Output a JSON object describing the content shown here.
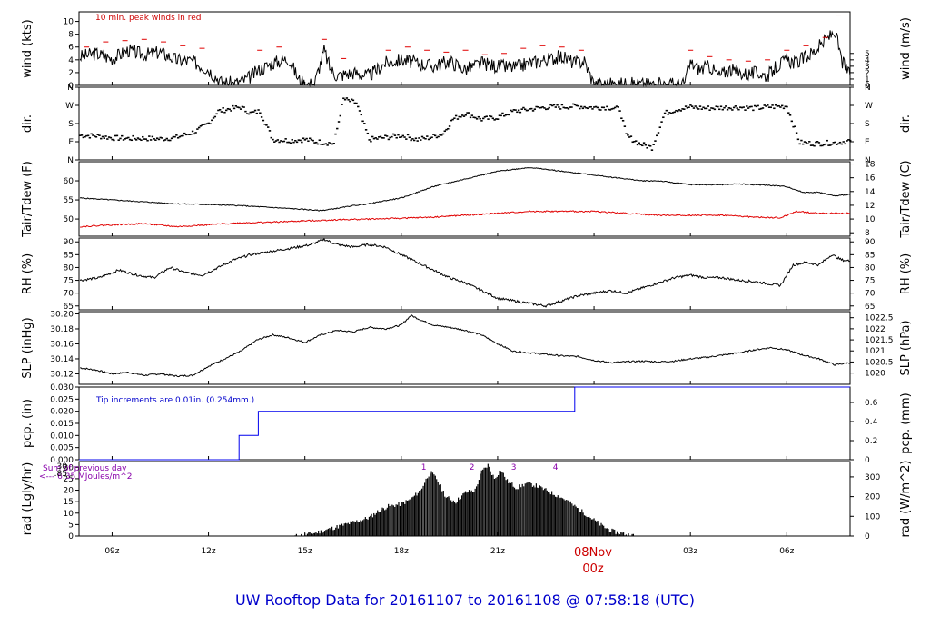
{
  "title": "UW Rooftop Data for 20161107  to  20161108 @ 07:58:18  (UTC)",
  "colors": {
    "black": "#000000",
    "red": "#e00000",
    "blue": "#0000ee",
    "purple": "#8800aa",
    "frame": "#000000"
  },
  "x_axis": {
    "ticks": [
      "09z",
      "12z",
      "15z",
      "18z",
      "21z",
      "08Nov",
      "03z",
      "06z"
    ],
    "tick_hours": [
      9,
      12,
      15,
      18,
      21,
      24,
      27,
      30
    ],
    "date_label": "08Nov",
    "date_sub": "00z",
    "range_hours": [
      7.97,
      31.97
    ]
  },
  "chart_data": [
    {
      "id": "wind",
      "type": "line",
      "ylabel_left": "wind (kts)",
      "ylabel_right": "wind (m/s)",
      "ylim": [
        0,
        11.5
      ],
      "yticks_left": [
        "0",
        "2",
        "4",
        "6",
        "8",
        "10"
      ],
      "yticks_left_values": [
        0,
        2,
        4,
        6,
        8,
        10
      ],
      "yticks_right": [
        "0",
        "1",
        "2",
        "3",
        "4",
        "5"
      ],
      "yticks_right_values": [
        0,
        1,
        2,
        3,
        4,
        5
      ],
      "annotation": "10 min. peak winds in red",
      "series": [
        {
          "color": "black",
          "x": [
            8.0,
            8.5,
            9.0,
            9.5,
            10.0,
            10.5,
            11.0,
            11.5,
            12.0,
            12.4,
            12.8,
            13.2,
            13.6,
            14.0,
            14.5,
            14.8,
            15.0,
            15.3,
            15.6,
            15.8,
            16.0,
            16.5,
            17.0,
            17.5,
            18.0,
            18.5,
            19.0,
            19.5,
            20.0,
            20.5,
            21.0,
            21.5,
            22.0,
            22.5,
            23.0,
            23.4,
            23.7,
            24.0,
            25.0,
            26.0,
            26.8,
            27.0,
            27.3,
            27.6,
            27.9,
            28.2,
            28.5,
            28.8,
            29.1,
            29.4,
            29.7,
            30.0,
            30.3,
            30.6,
            30.9,
            31.2,
            31.5,
            31.7,
            31.97
          ],
          "y": [
            4.5,
            5.0,
            4.2,
            5.5,
            4.8,
            5.2,
            4.0,
            3.8,
            2.5,
            0.5,
            0.3,
            1.0,
            2.5,
            3.5,
            4.2,
            1.0,
            0.2,
            0.3,
            5.5,
            2.5,
            1.5,
            2.0,
            1.5,
            3.5,
            4.0,
            3.5,
            3.0,
            3.8,
            2.5,
            3.5,
            3.0,
            2.8,
            3.5,
            4.0,
            4.5,
            3.5,
            3.8,
            0.2,
            0.2,
            0.2,
            0.2,
            3.5,
            2.5,
            3.0,
            1.5,
            2.5,
            2.0,
            1.8,
            2.0,
            1.5,
            3.0,
            4.0,
            3.5,
            4.5,
            5.5,
            7.0,
            8.5,
            4.0,
            1.5
          ]
        },
        {
          "color": "red",
          "x": [
            8.2,
            8.8,
            9.4,
            10.0,
            10.6,
            11.2,
            11.8,
            13.6,
            14.2,
            15.6,
            16.2,
            17.6,
            18.2,
            18.8,
            19.4,
            20.0,
            20.6,
            21.2,
            21.8,
            22.4,
            23.0,
            23.6,
            27.0,
            27.6,
            28.2,
            28.8,
            29.4,
            30.0,
            30.6,
            31.2,
            31.6
          ],
          "y": [
            6.0,
            6.8,
            7.0,
            7.2,
            6.8,
            6.2,
            5.8,
            5.5,
            6.0,
            7.2,
            4.2,
            5.5,
            6.0,
            5.5,
            5.2,
            5.5,
            4.8,
            5.0,
            5.8,
            6.2,
            6.0,
            5.5,
            5.5,
            4.5,
            4.0,
            3.8,
            4.0,
            5.5,
            6.2,
            7.5,
            11.0
          ]
        }
      ]
    },
    {
      "id": "dir",
      "type": "scatter",
      "ylabel_left": "dir.",
      "ylabel_right": "dir.",
      "ylim": [
        0,
        360
      ],
      "yticks_left": [
        "N",
        "E",
        "S",
        "W",
        "N"
      ],
      "yticks_left_values": [
        0,
        90,
        180,
        270,
        360
      ],
      "yticks_right": [
        "N",
        "E",
        "S",
        "W",
        "N"
      ],
      "yticks_right_values": [
        0,
        90,
        180,
        270,
        360
      ],
      "series": [
        {
          "color": "black",
          "x": [
            8.0,
            8.5,
            9.0,
            9.5,
            10.0,
            10.5,
            11.0,
            11.3,
            11.6,
            12.0,
            12.3,
            12.6,
            13.0,
            13.3,
            13.6,
            14.0,
            14.5,
            15.0,
            15.3,
            15.6,
            15.9,
            16.2,
            16.6,
            17.0,
            17.5,
            18.0,
            18.5,
            18.9,
            19.3,
            19.6,
            20.0,
            20.5,
            21.0,
            21.5,
            22.0,
            22.5,
            23.0,
            23.5,
            24.0,
            24.4,
            24.8,
            25.0,
            25.4,
            25.8,
            26.2,
            26.6,
            27.0,
            27.5,
            28.0,
            28.5,
            29.0,
            29.5,
            30.0,
            30.4,
            30.8,
            31.2,
            31.6,
            31.97
          ],
          "y": [
            120,
            118,
            108,
            105,
            106,
            103,
            110,
            125,
            140,
            180,
            240,
            250,
            260,
            230,
            240,
            100,
            95,
            100,
            90,
            85,
            80,
            300,
            280,
            100,
            110,
            120,
            100,
            110,
            130,
            200,
            230,
            200,
            210,
            240,
            250,
            260,
            262,
            265,
            258,
            260,
            250,
            120,
            80,
            60,
            230,
            250,
            260,
            255,
            258,
            260,
            255,
            262,
            265,
            85,
            80,
            82,
            85,
            95
          ]
        }
      ]
    },
    {
      "id": "temp",
      "type": "line",
      "ylabel_left": "Tair/Tdew (F)",
      "ylabel_right": "Tair/Tdew (C)",
      "ylim": [
        45.5,
        65
      ],
      "yticks_left": [
        "50",
        "55",
        "60"
      ],
      "yticks_left_values": [
        50,
        55,
        60
      ],
      "yticks_right": [
        "8",
        "10",
        "12",
        "14",
        "16",
        "18"
      ],
      "yticks_right_values": [
        46.4,
        50,
        53.6,
        57.2,
        60.8,
        64.4
      ],
      "series": [
        {
          "color": "black",
          "x": [
            8.0,
            9.0,
            10.0,
            11.0,
            12.0,
            13.0,
            14.0,
            15.0,
            15.5,
            16.0,
            16.5,
            17.0,
            17.5,
            18.0,
            18.5,
            19.0,
            19.5,
            20.0,
            20.5,
            21.0,
            21.5,
            22.0,
            22.5,
            23.0,
            23.5,
            24.0,
            24.5,
            25.0,
            25.5,
            26.0,
            26.5,
            27.0,
            27.5,
            28.0,
            28.5,
            29.0,
            29.5,
            30.0,
            30.5,
            31.0,
            31.5,
            31.97
          ],
          "y": [
            55.5,
            55.0,
            54.5,
            54.0,
            53.8,
            53.5,
            53.0,
            52.5,
            52.2,
            52.8,
            53.5,
            54.0,
            54.8,
            55.5,
            57.0,
            58.5,
            59.5,
            60.5,
            61.5,
            62.5,
            63.0,
            63.5,
            63.0,
            62.5,
            62.0,
            61.5,
            61.0,
            60.5,
            60.0,
            60.0,
            59.5,
            59.0,
            59.0,
            59.0,
            59.2,
            59.0,
            58.8,
            58.5,
            57.0,
            57.0,
            56.0,
            56.5
          ]
        },
        {
          "color": "red",
          "x": [
            8.0,
            9.0,
            10.0,
            11.0,
            12.0,
            13.0,
            14.0,
            15.0,
            16.0,
            17.0,
            18.0,
            19.0,
            20.0,
            21.0,
            22.0,
            23.0,
            24.0,
            25.0,
            26.0,
            27.0,
            28.0,
            29.0,
            29.8,
            30.3,
            31.0,
            31.97
          ],
          "y": [
            48.0,
            48.5,
            48.8,
            48.0,
            48.5,
            49.0,
            49.2,
            49.5,
            49.8,
            50.0,
            50.2,
            50.5,
            51.0,
            51.5,
            52.0,
            52.0,
            52.0,
            51.5,
            51.0,
            51.0,
            51.0,
            50.5,
            50.3,
            52.0,
            51.5,
            51.5
          ]
        }
      ]
    },
    {
      "id": "rh",
      "type": "line",
      "ylabel_left": "RH (%)",
      "ylabel_right": "RH (%)",
      "ylim": [
        63.5,
        91.5
      ],
      "yticks_left": [
        "65",
        "70",
        "75",
        "80",
        "85",
        "90"
      ],
      "yticks_left_values": [
        65,
        70,
        75,
        80,
        85,
        90
      ],
      "yticks_right": [
        "65",
        "70",
        "75",
        "80",
        "85",
        "90"
      ],
      "yticks_right_values": [
        65,
        70,
        75,
        80,
        85,
        90
      ],
      "series": [
        {
          "color": "black",
          "x": [
            8.0,
            8.6,
            9.2,
            9.8,
            10.3,
            10.8,
            11.3,
            11.8,
            12.3,
            12.8,
            13.3,
            13.8,
            14.3,
            14.8,
            15.2,
            15.6,
            16.0,
            16.5,
            17.0,
            17.5,
            18.0,
            18.5,
            19.0,
            19.5,
            20.0,
            20.5,
            21.0,
            21.5,
            22.0,
            22.5,
            23.0,
            23.5,
            24.0,
            24.5,
            25.0,
            25.5,
            26.0,
            26.5,
            27.0,
            27.5,
            28.0,
            28.5,
            29.0,
            29.5,
            29.8,
            30.2,
            30.6,
            31.0,
            31.4,
            31.7,
            31.97
          ],
          "y": [
            75.0,
            76.0,
            79.0,
            77.0,
            76.0,
            80.0,
            78.0,
            77.0,
            80.0,
            83.0,
            85.0,
            86.0,
            87.0,
            88.0,
            89.0,
            91.0,
            89.0,
            88.0,
            89.0,
            88.0,
            85.0,
            82.0,
            79.0,
            76.0,
            74.0,
            71.0,
            68.0,
            67.0,
            66.0,
            65.0,
            67.0,
            69.0,
            70.0,
            71.0,
            70.0,
            72.0,
            74.0,
            76.0,
            77.0,
            76.0,
            76.0,
            75.0,
            74.5,
            73.5,
            73.0,
            81.0,
            82.0,
            81.0,
            85.0,
            83.0,
            82.5
          ]
        }
      ]
    },
    {
      "id": "slp",
      "type": "line",
      "ylabel_left": "SLP (inHg)",
      "ylabel_right": "SLP (hPa)",
      "ylim": [
        30.106,
        30.203
      ],
      "yticks_left": [
        "30.12",
        "30.14",
        "30.16",
        "30.18",
        "30.20"
      ],
      "yticks_left_values": [
        30.12,
        30.14,
        30.16,
        30.18,
        30.2
      ],
      "yticks_right": [
        "1020",
        "1020.5",
        "1021",
        "1021.5",
        "1022",
        "1022.5"
      ],
      "yticks_right_values": [
        30.121,
        30.1358,
        30.1506,
        30.1653,
        30.1801,
        30.1949
      ],
      "series": [
        {
          "color": "black",
          "x": [
            8.0,
            8.5,
            9.0,
            9.5,
            10.0,
            10.5,
            11.0,
            11.5,
            12.0,
            12.5,
            13.0,
            13.5,
            14.0,
            14.5,
            15.0,
            15.5,
            16.0,
            16.5,
            17.0,
            17.5,
            18.0,
            18.3,
            18.6,
            19.0,
            19.5,
            20.0,
            20.5,
            21.0,
            21.5,
            22.0,
            22.5,
            23.0,
            23.5,
            24.0,
            24.5,
            25.0,
            25.5,
            26.0,
            26.5,
            27.0,
            27.5,
            28.0,
            28.5,
            29.0,
            29.5,
            30.0,
            30.5,
            31.0,
            31.5,
            31.97
          ],
          "y": [
            30.128,
            30.125,
            30.12,
            30.122,
            30.118,
            30.12,
            30.117,
            30.118,
            30.13,
            30.14,
            30.15,
            30.165,
            30.172,
            30.168,
            30.162,
            30.172,
            30.178,
            30.176,
            30.182,
            30.18,
            30.185,
            30.198,
            30.192,
            30.185,
            30.182,
            30.178,
            30.172,
            30.16,
            30.15,
            30.148,
            30.146,
            30.144,
            30.143,
            30.138,
            30.135,
            30.136,
            30.137,
            30.136,
            30.137,
            30.14,
            30.142,
            30.145,
            30.148,
            30.152,
            30.155,
            30.152,
            30.145,
            30.14,
            30.132,
            30.135
          ]
        }
      ]
    },
    {
      "id": "pcp",
      "type": "line",
      "ylabel_left": "pcp. (in)",
      "ylabel_right": "pcp. (mm)",
      "ylim": [
        0,
        0.03
      ],
      "yticks_left": [
        "0.000",
        "0.005",
        "0.010",
        "0.015",
        "0.020",
        "0.025",
        "0.030"
      ],
      "yticks_left_values": [
        0,
        0.005,
        0.01,
        0.015,
        0.02,
        0.025,
        0.03
      ],
      "yticks_right": [
        "0",
        "0.2",
        "0.4",
        "0.6"
      ],
      "yticks_right_values": [
        0,
        0.00787,
        0.01575,
        0.02362
      ],
      "annotation": "Tip increments are 0.01in. (0.254mm.)",
      "series": [
        {
          "color": "blue",
          "x": [
            7.97,
            12.95,
            12.95,
            13.55,
            13.55,
            23.4,
            23.4,
            31.97
          ],
          "y": [
            0,
            0,
            0.01,
            0.01,
            0.02,
            0.02,
            0.03,
            0.03
          ]
        }
      ]
    },
    {
      "id": "rad",
      "type": "area",
      "ylabel_left": "rad (Lgly/hr)",
      "ylabel_right": "rad (W/m^2)",
      "ylim": [
        0,
        32.5
      ],
      "yticks_left": [
        "0",
        "5",
        "10",
        "15",
        "20",
        "25",
        "30"
      ],
      "yticks_left_values": [
        0,
        5,
        10,
        15,
        20,
        25,
        30
      ],
      "yticks_right": [
        "0",
        "100",
        "200",
        "300"
      ],
      "yticks_right_values": [
        0,
        8.6,
        17.2,
        25.8
      ],
      "annotation_line1": "Sum of previous day",
      "annotation_line2": "<--- 6.35 MJoules/m^2",
      "annotation_values": [
        "30",
        ".85"
      ],
      "peak_labels": [
        "1",
        "2",
        "3",
        "4"
      ],
      "peak_hours": [
        18.7,
        20.2,
        21.5,
        22.8
      ],
      "series": [
        {
          "color": "black",
          "x": [
            14.7,
            15.0,
            15.5,
            16.0,
            16.5,
            17.0,
            17.3,
            17.6,
            18.0,
            18.3,
            18.6,
            18.9,
            19.1,
            19.4,
            19.7,
            20.0,
            20.3,
            20.5,
            20.7,
            20.9,
            21.1,
            21.3,
            21.6,
            21.9,
            22.2,
            22.5,
            22.8,
            23.1,
            23.4,
            23.7,
            24.0,
            24.3,
            24.6,
            25.0,
            25.3
          ],
          "y": [
            0,
            0.5,
            2.0,
            4.0,
            6.0,
            8.0,
            11.0,
            13.0,
            14.0,
            16.0,
            20.0,
            28.0,
            25.0,
            17.0,
            15.0,
            19.0,
            20.0,
            28.0,
            31.0,
            25.0,
            29.0,
            24.0,
            21.0,
            23.0,
            22.0,
            20.0,
            18.0,
            16.0,
            13.0,
            10.0,
            7.0,
            4.0,
            2.0,
            0.8,
            0
          ]
        }
      ]
    }
  ]
}
